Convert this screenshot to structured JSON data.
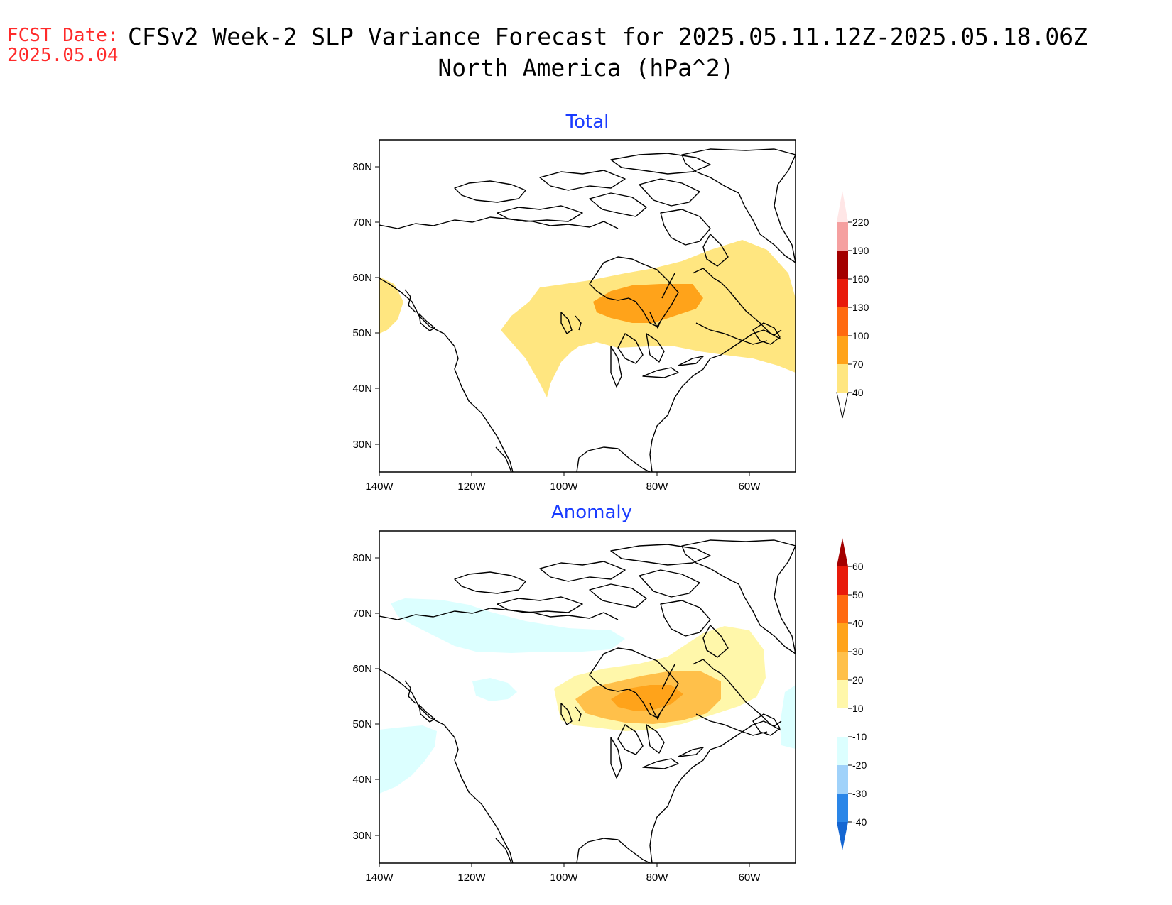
{
  "header": {
    "fcst_label": "FCST Date:",
    "fcst_date": "2025.05.04",
    "title": "CFSv2 Week-2 SLP Variance Forecast for 2025.05.11.12Z-2025.05.18.06Z",
    "subtitle": "North America (hPa^2)"
  },
  "axes": {
    "lat_labels": [
      "80N",
      "70N",
      "60N",
      "50N",
      "40N",
      "30N"
    ],
    "lon_labels": [
      "140W",
      "120W",
      "100W",
      "80W",
      "60W"
    ]
  },
  "panels": [
    {
      "title": "Total",
      "colorbar": {
        "levels": [
          "40",
          "70",
          "100",
          "130",
          "160",
          "190",
          "220"
        ],
        "colors": [
          "#ffe680",
          "#ffa31a",
          "#ff6a10",
          "#e81a0a",
          "#a30000",
          "#f5a0a0",
          "#ffe6e6"
        ]
      }
    },
    {
      "title": "Anomaly",
      "colorbar": {
        "levels": [
          "60",
          "50",
          "40",
          "30",
          "20",
          "10",
          "-10",
          "-20",
          "-30",
          "-40"
        ],
        "colors": [
          "#a30000",
          "#e81a0a",
          "#ff6a10",
          "#ffa31a",
          "#ffc04a",
          "#fff7aa",
          "#ffffff",
          "#dcffff",
          "#a0d2fa",
          "#2a86e8",
          "#1466d2"
        ]
      }
    }
  ],
  "chart_data": [
    {
      "type": "heatmap",
      "title": "Total",
      "lat_range": [
        25,
        85
      ],
      "lon_range": [
        -140,
        -50
      ],
      "contour_levels": [
        40,
        70,
        100,
        130,
        160,
        190,
        220
      ],
      "regions": [
        {
          "level": "40-70",
          "area": "central Canada to Labrador and northern Quebec"
        },
        {
          "level": "40-70",
          "area": "Gulf of Alaska coast"
        },
        {
          "level": "70-100",
          "area": "Hudson Bay to northern Ontario/Quebec"
        }
      ]
    },
    {
      "type": "heatmap",
      "title": "Anomaly",
      "lat_range": [
        25,
        85
      ],
      "lon_range": [
        -140,
        -50
      ],
      "contour_levels": [
        -40,
        -30,
        -20,
        -10,
        10,
        20,
        30,
        40,
        50,
        60
      ],
      "regions": [
        {
          "level": "10-20",
          "area": "central Canada to Labrador"
        },
        {
          "level": "20-30",
          "area": "Hudson Bay region"
        },
        {
          "level": "30-40",
          "area": "southern Hudson Bay"
        },
        {
          "level": "-20 to -10",
          "area": "northern Alaska to Beaufort Sea"
        },
        {
          "level": "-20 to -10",
          "area": "northeast Pacific off Pacific Northwest"
        },
        {
          "level": "-20 to -10",
          "area": "off Nova Scotia"
        }
      ]
    }
  ]
}
